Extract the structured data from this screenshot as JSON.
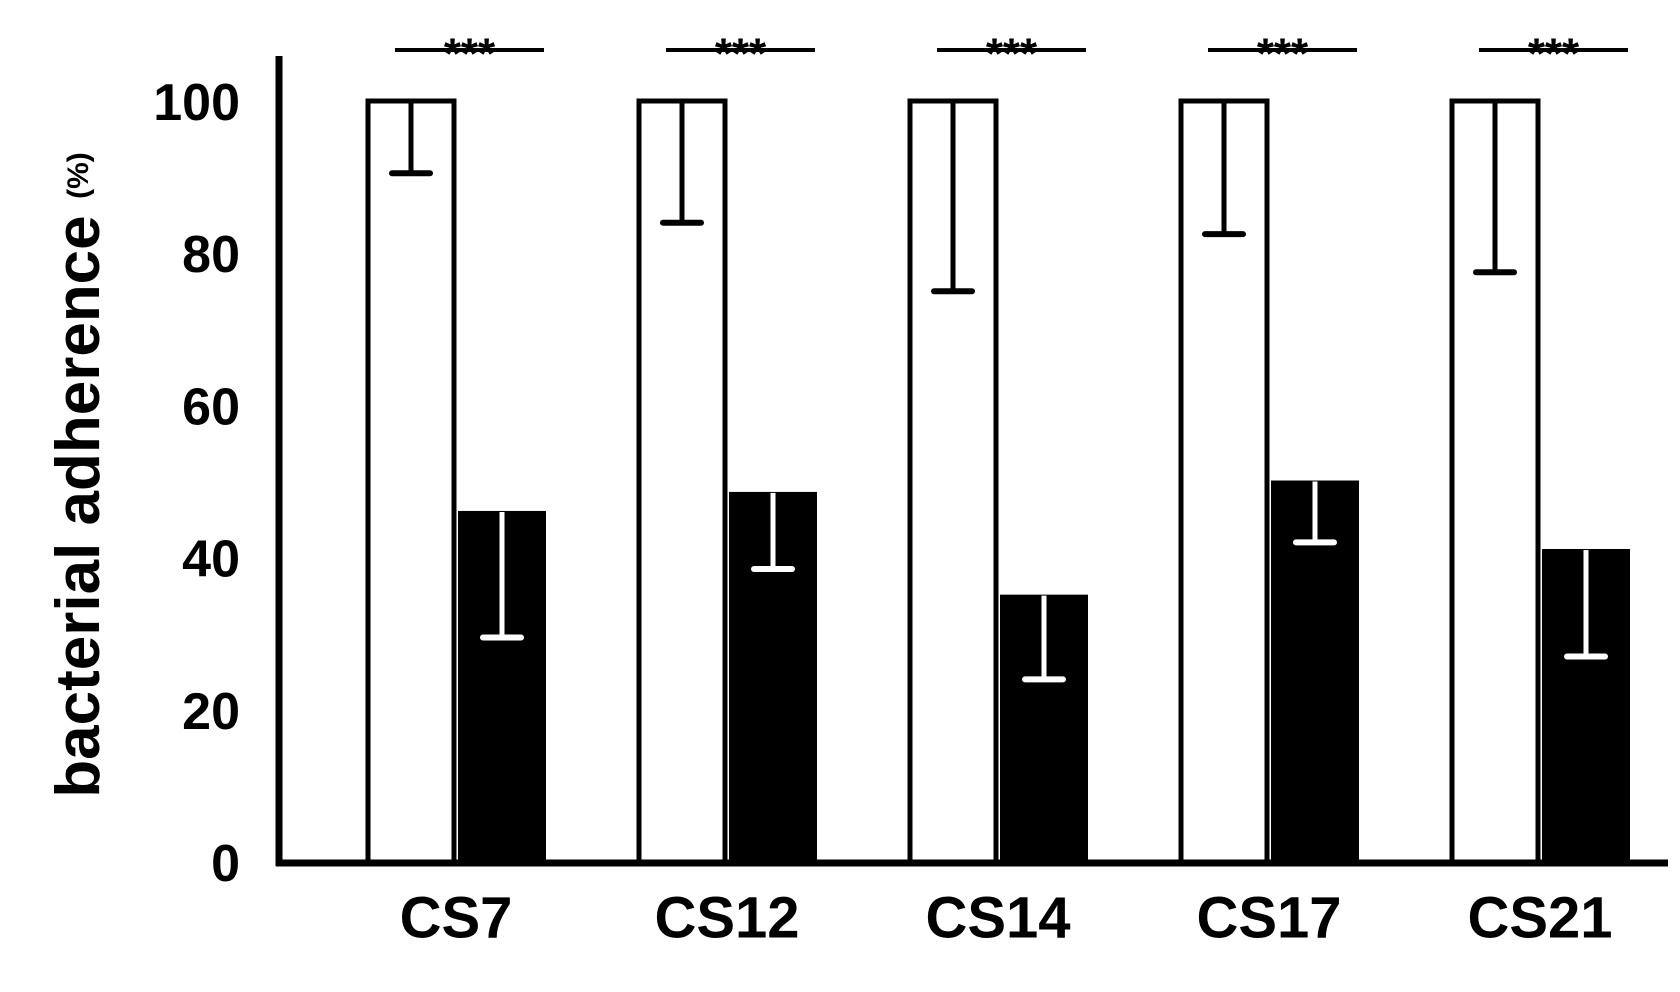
{
  "chart_data": {
    "type": "bar",
    "title": "",
    "xlabel": "",
    "ylabel": "bacterial adherence",
    "ylabel_unit": "(%)",
    "ylim": [
      0,
      100
    ],
    "yticks": [
      "0",
      "20",
      "40",
      "60",
      "80",
      "100"
    ],
    "grid": false,
    "legend": "none",
    "categories": [
      "CS7",
      "CS12",
      "CS14",
      "CS17",
      "CS21"
    ],
    "series": [
      {
        "values": [
          100,
          100,
          100,
          100,
          100
        ],
        "error_low": [
          90.5,
          84,
          75,
          82.5,
          77.5
        ],
        "fill": "#ffffff",
        "stroke": "#000000",
        "error_color": "#000000"
      },
      {
        "values": [
          46,
          48.5,
          35,
          50,
          41
        ],
        "error_low": [
          29.5,
          38.5,
          24,
          42,
          27
        ],
        "fill": "#000000",
        "stroke": "#000000",
        "error_color": "#ffffff"
      }
    ],
    "annotations": [
      "***",
      "***",
      "***",
      "***",
      "***"
    ]
  }
}
